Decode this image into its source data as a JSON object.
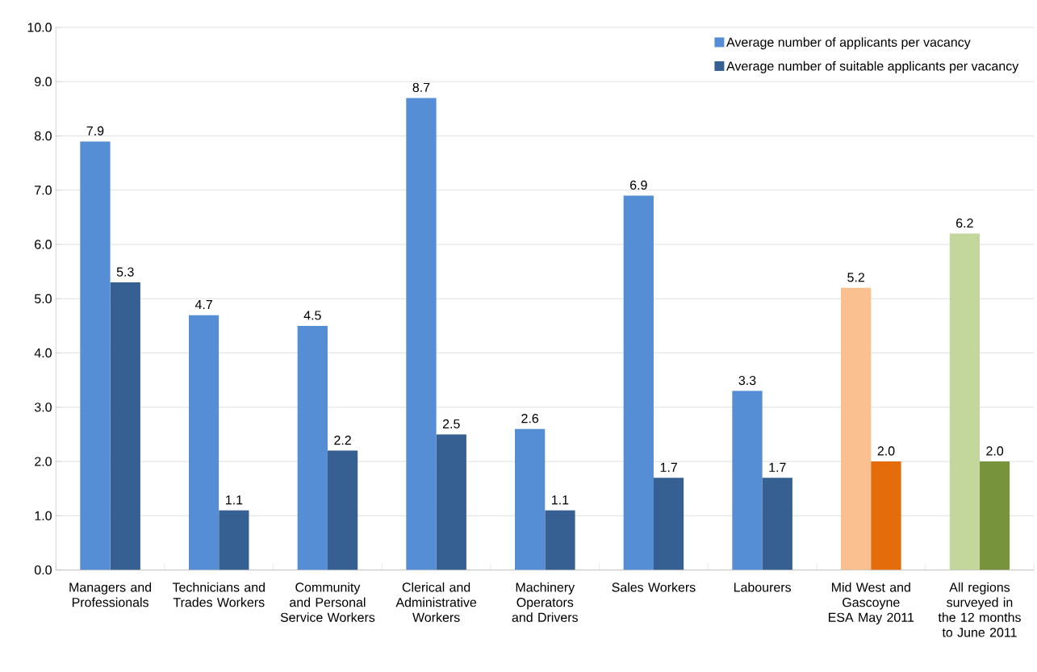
{
  "chart_data": {
    "type": "bar",
    "categories": [
      "Managers and Professionals",
      "Technicians and Trades Workers",
      "Community and Personal Service Workers",
      "Clerical and Administrative Workers",
      "Machinery Operators and Drivers",
      "Sales Workers",
      "Labourers",
      "Mid West and Gascoyne ESA May 2011",
      "All regions surveyed in the 12 months to June 2011"
    ],
    "series": [
      {
        "name": "Average number of applicants per vacancy",
        "color": "#558ed5",
        "colors": [
          "#558ed5",
          "#558ed5",
          "#558ed5",
          "#558ed5",
          "#558ed5",
          "#558ed5",
          "#558ed5",
          "#fac090",
          "#c3d69b"
        ],
        "values": [
          7.9,
          4.7,
          4.5,
          8.7,
          2.6,
          6.9,
          3.3,
          5.2,
          6.2
        ],
        "value_labels": [
          "7.9",
          "4.7",
          "4.5",
          "8.7",
          "2.6",
          "6.9",
          "3.3",
          "5.2",
          "6.2"
        ]
      },
      {
        "name": "Average number of suitable applicants per vacancy",
        "color": "#376092",
        "colors": [
          "#376092",
          "#376092",
          "#376092",
          "#376092",
          "#376092",
          "#376092",
          "#376092",
          "#e46c0a",
          "#77933c"
        ],
        "values": [
          5.3,
          1.1,
          2.2,
          2.5,
          1.1,
          1.7,
          1.7,
          2.0,
          2.0
        ],
        "value_labels": [
          "5.3",
          "1.1",
          "2.2",
          "2.5",
          "1.1",
          "1.7",
          "1.7",
          "2.0",
          "2.0"
        ]
      }
    ],
    "ylim": [
      0,
      10
    ],
    "yticks": [
      {
        "value": 0,
        "label": "0.0"
      },
      {
        "value": 1,
        "label": "1.0"
      },
      {
        "value": 2,
        "label": "2.0"
      },
      {
        "value": 3,
        "label": "3.0"
      },
      {
        "value": 4,
        "label": "4.0"
      },
      {
        "value": 5,
        "label": "5.0"
      },
      {
        "value": 6,
        "label": "6.0"
      },
      {
        "value": 7,
        "label": "7.0"
      },
      {
        "value": 8,
        "label": "8.0"
      },
      {
        "value": 9,
        "label": "9.0"
      },
      {
        "value": 10,
        "label": "10.0"
      }
    ],
    "grid": "y",
    "legend": "top right"
  }
}
